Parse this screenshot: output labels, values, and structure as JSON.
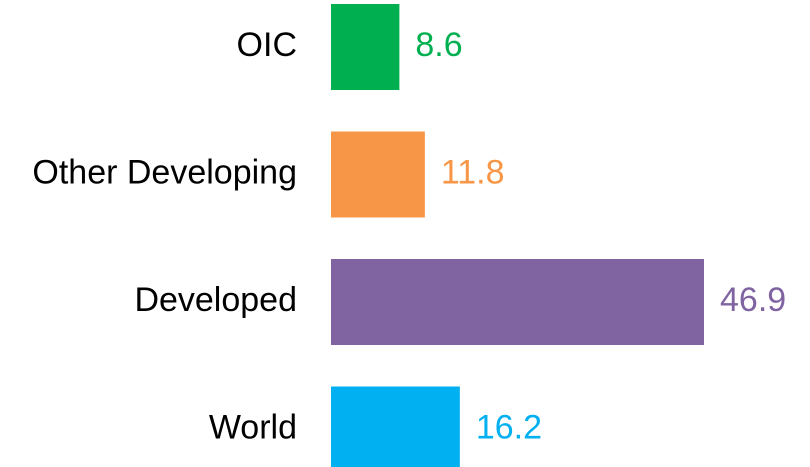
{
  "chart_data": {
    "type": "bar",
    "orientation": "horizontal",
    "categories": [
      "OIC",
      "Other Developing",
      "Developed",
      "World"
    ],
    "values": [
      8.6,
      11.8,
      46.9,
      16.2
    ],
    "colors": [
      "#00b050",
      "#f79646",
      "#8064a2",
      "#00b0f0"
    ]
  }
}
